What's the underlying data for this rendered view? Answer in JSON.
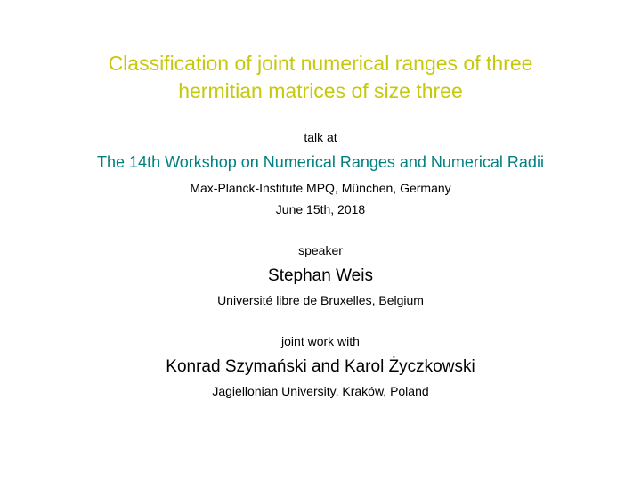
{
  "title": {
    "line1": "Classification of joint numerical ranges of three",
    "line2": "hermitian matrices of size three"
  },
  "talk_at_label": "talk at",
  "workshop": "The 14th Workshop on Numerical Ranges and Numerical Radii",
  "venue": "Max-Planck-Institute MPQ, München, Germany",
  "date": "June 15th, 2018",
  "speaker_label": "speaker",
  "speaker_name": "Stephan Weis",
  "speaker_affiliation": "Université libre de Bruxelles, Belgium",
  "joint_work_label": "joint work with",
  "coauthors": "Konrad Szymański and Karol Życzkowski",
  "coauthor_affiliation": "Jagiellonian University, Kraków, Poland",
  "colors": {
    "title_color": "#c6c80c",
    "workshop_color": "#008080",
    "text_color": "#000000",
    "background_color": "#ffffff"
  },
  "typography": {
    "title_fontsize": 23,
    "workshop_fontsize": 18,
    "name_fontsize": 19,
    "body_fontsize": 14,
    "font_family": "Arial, Helvetica, sans-serif"
  }
}
